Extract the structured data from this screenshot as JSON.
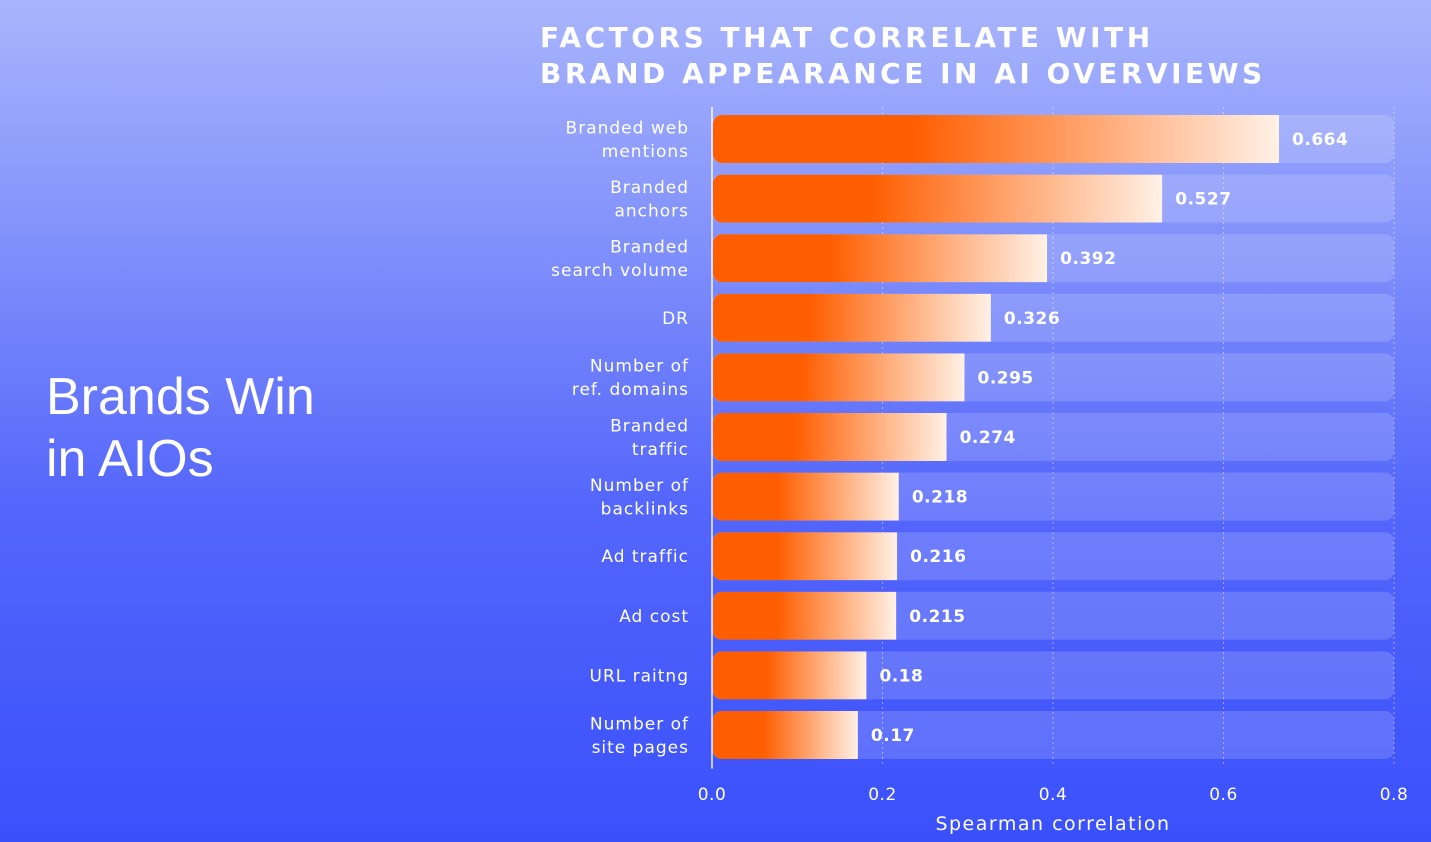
{
  "heading": {
    "line1": "Brands Win",
    "line2": "in AIOs"
  },
  "chart_data": {
    "type": "bar",
    "orientation": "horizontal",
    "title_line1": "FACTORS THAT CORRELATE WITH",
    "title_line2": "BRAND APPEARANCE IN AI OVERVIEWS",
    "categories": [
      [
        "Branded web",
        "mentions"
      ],
      [
        "Branded",
        "anchors"
      ],
      [
        "Branded",
        "search volume"
      ],
      [
        "DR"
      ],
      [
        "Number of",
        "ref. domains"
      ],
      [
        "Branded",
        "traffic"
      ],
      [
        "Number of",
        "backlinks"
      ],
      [
        "Ad traffic"
      ],
      [
        "Ad cost"
      ],
      [
        "URL raitng"
      ],
      [
        "Number of",
        "site pages"
      ]
    ],
    "values": [
      0.664,
      0.527,
      0.392,
      0.326,
      0.295,
      0.274,
      0.218,
      0.216,
      0.215,
      0.18,
      0.17
    ],
    "value_labels": [
      "0.664",
      "0.527",
      "0.392",
      "0.326",
      "0.295",
      "0.274",
      "0.218",
      "0.216",
      "0.215",
      "0.18",
      "0.17"
    ],
    "xlabel": "Spearman correlation",
    "xlim": [
      0,
      0.8
    ],
    "xticks": [
      "0.0",
      "0.2",
      "0.4",
      "0.6",
      "0.8"
    ],
    "grid": true,
    "colors": {
      "bar_start": "#ff5e00",
      "bar_end": "#fff1e6",
      "track": "#ffffff"
    }
  }
}
